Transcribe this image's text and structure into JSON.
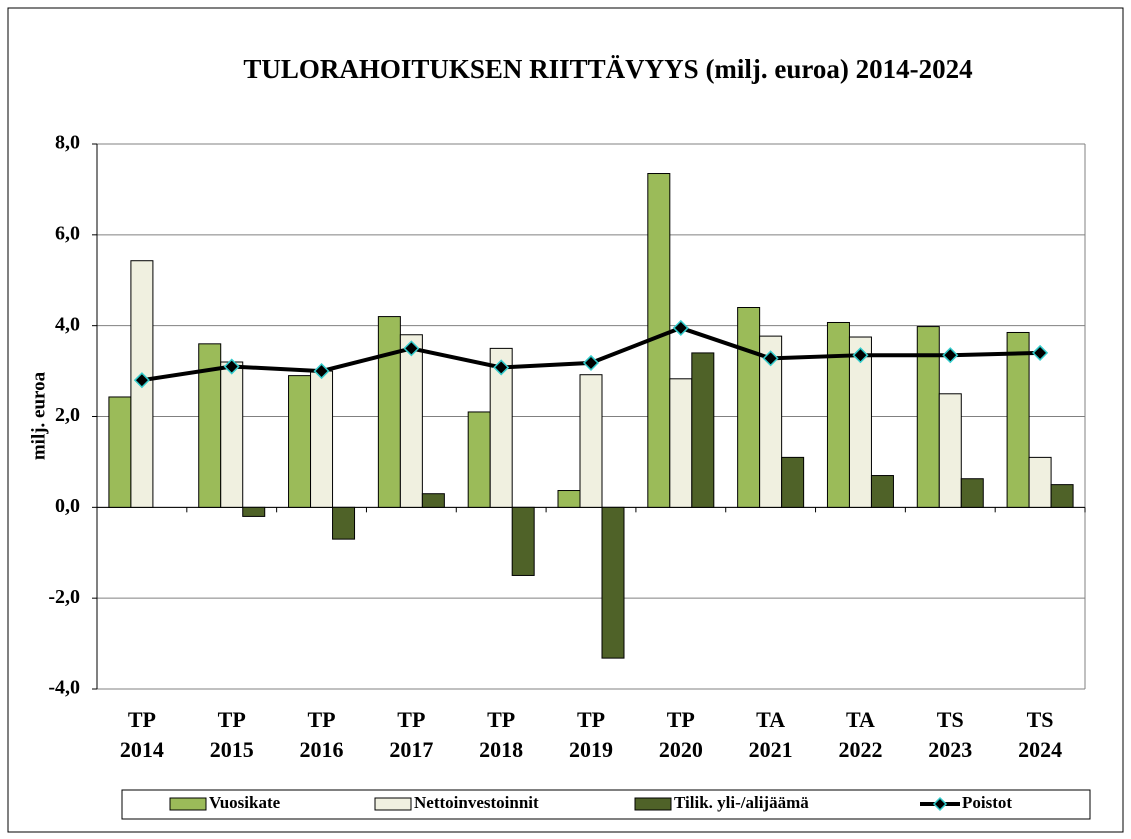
{
  "chart_data": {
    "type": "bar",
    "title": "TULORAHOITUKSEN RIITTÄVYYS (milj. euroa) 2014-2024",
    "y_label": "milj. euroa",
    "categories": [
      "TP 2014",
      "TP 2015",
      "TP 2016",
      "TP 2017",
      "TP 2018",
      "TP 2019",
      "TP 2020",
      "TA 2021",
      "TA 2022",
      "TS 2023",
      "TS 2024"
    ],
    "series": [
      {
        "name": "Vuosikate",
        "type": "bar",
        "color": "#9bbb59",
        "values": [
          2.43,
          3.6,
          2.9,
          4.2,
          2.1,
          0.37,
          7.35,
          4.4,
          4.07,
          3.98,
          3.85
        ]
      },
      {
        "name": "Nettoinvestoinnit",
        "type": "bar",
        "color": "#f0f0e0",
        "values": [
          5.43,
          3.2,
          3.0,
          3.8,
          3.5,
          2.92,
          2.83,
          3.77,
          3.75,
          2.5,
          1.1
        ]
      },
      {
        "name": "Tilik. yli-/alijäämä",
        "type": "bar",
        "color": "#4f6228",
        "values": [
          null,
          -0.2,
          -0.7,
          0.3,
          -1.5,
          -3.32,
          3.4,
          1.1,
          0.7,
          0.63,
          0.5
        ]
      },
      {
        "name": "Poistot",
        "type": "line",
        "color": "#000000",
        "marker_edge": "#33cccc",
        "values": [
          2.8,
          3.1,
          3.0,
          3.5,
          3.08,
          3.18,
          3.95,
          3.28,
          3.35,
          3.35,
          3.4
        ]
      }
    ],
    "ylim": [
      -4,
      8
    ],
    "yticks": [
      {
        "value": -4,
        "label": "-4,0"
      },
      {
        "value": -2,
        "label": "-2,0"
      },
      {
        "value": 0,
        "label": "0,0"
      },
      {
        "value": 2,
        "label": "2,0"
      },
      {
        "value": 4,
        "label": "4,0"
      },
      {
        "value": 6,
        "label": "6,0"
      },
      {
        "value": 8,
        "label": "8,0"
      }
    ],
    "grid": true,
    "legend": "bottom"
  }
}
